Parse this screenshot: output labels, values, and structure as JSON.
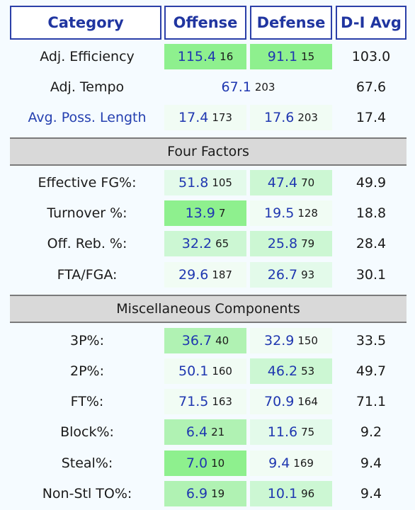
{
  "header": {
    "category": "Category",
    "offense": "Offense",
    "defense": "Defense",
    "avg": "D-I Avg"
  },
  "rows_top": [
    {
      "label": "Adj. Efficiency",
      "off": "115.4",
      "off_rank": "16",
      "def": "91.1",
      "def_rank": "15",
      "avg": "103.0"
    },
    {
      "label": "Adj. Tempo",
      "both": "67.1",
      "both_rank": "203",
      "avg": "67.6"
    },
    {
      "label": "Avg. Poss. Length",
      "off": "17.4",
      "off_rank": "173",
      "def": "17.6",
      "def_rank": "203",
      "avg": "17.4"
    }
  ],
  "four_factors": {
    "title": "Four Factors",
    "rows": [
      {
        "label": "Effective FG%:",
        "off": "51.8",
        "off_rank": "105",
        "def": "47.4",
        "def_rank": "70",
        "avg": "49.9"
      },
      {
        "label": "Turnover %:",
        "off": "13.9",
        "off_rank": "7",
        "def": "19.5",
        "def_rank": "128",
        "avg": "18.8"
      },
      {
        "label": "Off. Reb. %:",
        "off": "32.2",
        "off_rank": "65",
        "def": "25.8",
        "def_rank": "79",
        "avg": "28.4"
      },
      {
        "label": "FTA/FGA:",
        "off": "29.6",
        "off_rank": "187",
        "def": "26.7",
        "def_rank": "93",
        "avg": "30.1"
      }
    ]
  },
  "misc": {
    "title": "Miscellaneous Components",
    "rows": [
      {
        "label": "3P%:",
        "off": "36.7",
        "off_rank": "40",
        "def": "32.9",
        "def_rank": "150",
        "avg": "33.5"
      },
      {
        "label": "2P%:",
        "off": "50.1",
        "off_rank": "160",
        "def": "46.2",
        "def_rank": "53",
        "avg": "49.7"
      },
      {
        "label": "FT%:",
        "off": "71.5",
        "off_rank": "163",
        "def": "70.9",
        "def_rank": "164",
        "avg": "71.1"
      },
      {
        "label": "Block%:",
        "off": "6.4",
        "off_rank": "21",
        "def": "11.6",
        "def_rank": "75",
        "avg": "9.2"
      },
      {
        "label": "Steal%:",
        "off": "7.0",
        "off_rank": "10",
        "def": "9.4",
        "def_rank": "169",
        "avg": "9.4"
      },
      {
        "label": "Non-Stl TO%:",
        "off": "6.9",
        "off_rank": "19",
        "def": "10.1",
        "def_rank": "96",
        "avg": "9.4"
      }
    ]
  }
}
